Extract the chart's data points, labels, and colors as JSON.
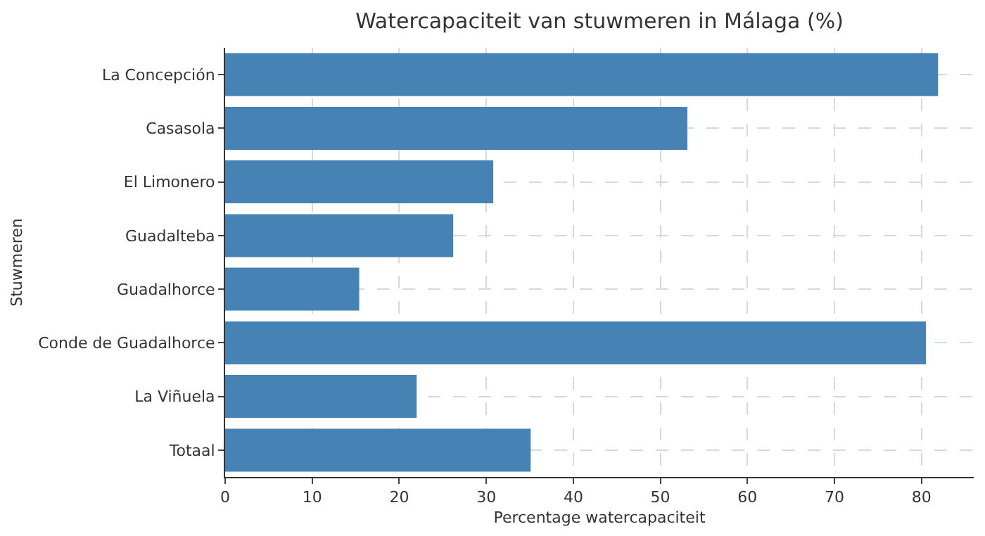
{
  "chart_data": {
    "type": "bar",
    "orientation": "horizontal",
    "title": "Watercapaciteit van stuwmeren in Málaga (%)",
    "xlabel": "Percentage watercapaciteit",
    "ylabel": "Stuwmeren",
    "categories": [
      "La Concepción",
      "Casasola",
      "El Limonero",
      "Guadalteba",
      "Guadalhorce",
      "Conde de Guadalhorce",
      "La Viñuela",
      "Totaal"
    ],
    "values": [
      81.9,
      53.1,
      30.8,
      26.2,
      15.4,
      80.5,
      22.0,
      35.1
    ],
    "color": "#4682b4",
    "xlim": [
      0,
      86
    ],
    "xticks": [
      0,
      10,
      20,
      30,
      40,
      50,
      60,
      70,
      80
    ],
    "grid": true
  }
}
